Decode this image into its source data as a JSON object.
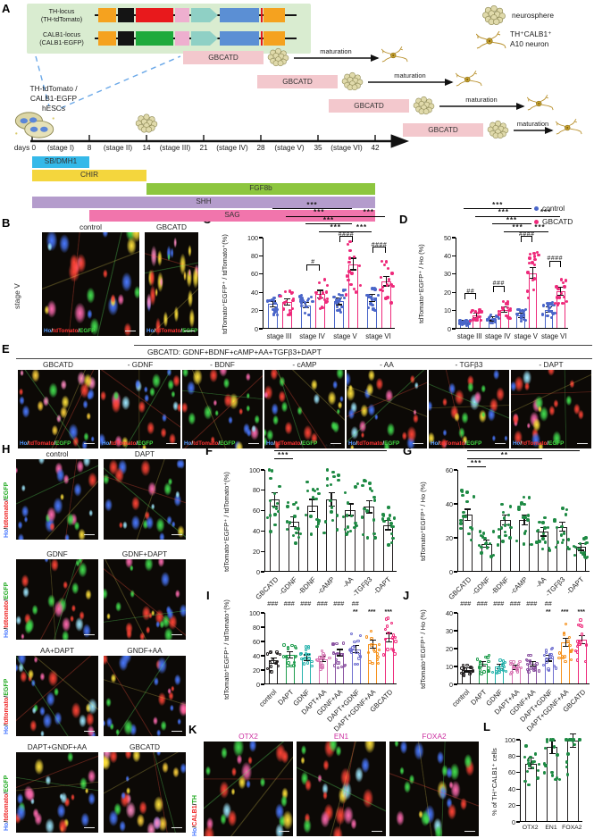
{
  "panel_labels": {
    "A": "A",
    "B": "B",
    "C": "C",
    "D": "D",
    "E": "E",
    "F": "F",
    "G": "G",
    "H": "H",
    "I": "I",
    "J": "J",
    "K": "K",
    "L": "L"
  },
  "colors": {
    "control": "#4a66c9",
    "gbcatd": "#ee2a7b",
    "green_dot": "#1e8a44",
    "k_title": "#cc2fa0",
    "ho_blue": "#5599ff",
    "tdtomato_red": "#ff3333",
    "egfp_green": "#44dd44"
  },
  "overlays": {
    "ho_td_egfp": [
      {
        "t": "Ho",
        "c": "#5599ff"
      },
      {
        "t": "/",
        "c": "#eeeeee"
      },
      {
        "t": "tdTomato",
        "c": "#ff3333"
      },
      {
        "t": "/",
        "c": "#eeeeee"
      },
      {
        "t": "EGFP",
        "c": "#44dd44"
      }
    ],
    "ho_tdtomato_egfp_side": [
      {
        "t": "Ho",
        "c": "#4d7bff"
      },
      {
        "t": "/",
        "c": "#222222"
      },
      {
        "t": "tdtomato",
        "c": "#ee2222"
      },
      {
        "t": "/",
        "c": "#222222"
      },
      {
        "t": "EGFP",
        "c": "#22aa22"
      }
    ],
    "ho_calb1_th_side": [
      {
        "t": "Ho",
        "c": "#4d7bff"
      },
      {
        "t": "/",
        "c": "#222222"
      },
      {
        "t": "CALB1",
        "c": "#ee2222"
      },
      {
        "t": "/",
        "c": "#222222"
      },
      {
        "t": "TH",
        "c": "#22aa22"
      }
    ]
  },
  "panelA": {
    "construct_rows": [
      {
        "name": "TH-locus",
        "name2": "(TH-tdTomato)",
        "boxes": [
          {
            "t": "Ex-",
            "c": "#f5a21f"
          },
          {
            "t": "2A",
            "c": "#141414"
          },
          {
            "t": "tdTomato",
            "c": "#e8191c"
          },
          {
            "t": "pA",
            "c": "#eeafcf"
          },
          {
            "t": "PGK",
            "c": "#8fd0c5",
            "arrow": true
          },
          {
            "t": "puromycin",
            "c": "#5b8fd4"
          },
          {
            "t": "on14",
            "c": "#f5a21f"
          }
        ]
      },
      {
        "name": "CALB1-locus",
        "name2": "(CALB1-EGFP)",
        "boxes": [
          {
            "t": "Ex-",
            "c": "#f5a21f"
          },
          {
            "t": "2A",
            "c": "#141414"
          },
          {
            "t": "EGFP",
            "c": "#1faa3c"
          },
          {
            "t": "pA",
            "c": "#eeafcf"
          },
          {
            "t": "PGK",
            "c": "#8fd0c5",
            "arrow": true
          },
          {
            "t": "neomycin",
            "c": "#5b8fd4"
          },
          {
            "t": "on11",
            "c": "#f5a21f"
          }
        ]
      }
    ],
    "legend": [
      {
        "icon": "neurosphere",
        "label1": "neurosphere",
        "label2": ""
      },
      {
        "icon": "neuron",
        "label1": "TH⁺CALB1⁺",
        "label2": "A10 neuron"
      }
    ],
    "hesc_lines": [
      "TH-tdTomato /",
      "CALB1-EGFP",
      "hESCs"
    ],
    "gbcatd_label": "GBCATD",
    "maturation_label": "maturation",
    "timeline": {
      "days_word": "days 0",
      "day_ticks": [
        "0",
        "8",
        "14",
        "21",
        "28",
        "35",
        "42"
      ],
      "stage_labels": [
        "(stage I)",
        "(stage II)",
        "(stage III)",
        "(stage IV)",
        "(stage V)",
        "(stage VI)"
      ],
      "factor_bars": [
        {
          "label": "SB/DMH1",
          "color": "#35b9e9",
          "from": 0,
          "to": 1
        },
        {
          "label": "CHIR",
          "color": "#f4d63d",
          "from": 0,
          "to": 2
        },
        {
          "label": "FGF8b",
          "color": "#8dc63f",
          "from": 2,
          "to": 6
        },
        {
          "label": "SHH",
          "color": "#b49ccc",
          "from": 0,
          "to": 6
        },
        {
          "label": "SAG",
          "color": "#f175ac",
          "from": 1,
          "to": 6
        }
      ]
    }
  },
  "panelB": {
    "row_label": "stage V",
    "image_titles": [
      "control",
      "GBCATD"
    ]
  },
  "panelD_legend": [
    {
      "label": "control",
      "color": "#4a66c9"
    },
    {
      "label": "GBCATD",
      "color": "#ee2a7b"
    }
  ],
  "panelE": {
    "header": "GBCATD: GDNF+BDNF+cAMP+AA+TGFβ3+DAPT",
    "image_titles": [
      "GBCATD",
      "- GDNF",
      "- BDNF",
      "- cAMP",
      "- AA",
      "- TGFβ3",
      "- DAPT"
    ]
  },
  "panelH": {
    "rows": [
      [
        "control",
        "DAPT"
      ],
      [
        "GDNF",
        "GDNF+DAPT"
      ],
      [
        "AA+DAPT",
        "GNDF+AA"
      ],
      [
        "DAPT+GNDF+AA",
        "GBCATD"
      ]
    ]
  },
  "panelK": {
    "image_titles": [
      "OTX2",
      "EN1",
      "FOXA2"
    ]
  },
  "chart_data": [
    {
      "panel": "C",
      "type": "bar",
      "subtype": "grouped",
      "categories": [
        "stage III",
        "stage IV",
        "stage V",
        "stage VI"
      ],
      "series": [
        {
          "name": "control",
          "color": "#4a66c9",
          "values": [
            26,
            25,
            29,
            33
          ]
        },
        {
          "name": "GBCATD",
          "color": "#ee2a7b",
          "values": [
            28,
            37,
            70,
            51
          ]
        }
      ],
      "ylabel": "tdTomato⁺EGFP⁺ / tdTomato⁺(%)",
      "ylim": [
        0,
        100
      ],
      "yticks": [
        0,
        20,
        40,
        60,
        80,
        100
      ],
      "group_sig": [
        "",
        "#",
        "####",
        "####"
      ],
      "sig_lines": [
        {
          "from": 0,
          "to": 5,
          "row": 0,
          "label": "***"
        },
        {
          "from": 1,
          "to": 5,
          "row": 1,
          "label": "***"
        },
        {
          "from": 2,
          "to": 5,
          "row": 2,
          "label": "***"
        },
        {
          "from": 3,
          "to": 5,
          "row": 3,
          "label": "***"
        },
        {
          "from": 5,
          "to": 7,
          "row": 1,
          "label": "***"
        },
        {
          "from": 5,
          "to": 6,
          "row": 3,
          "label": "***"
        }
      ]
    },
    {
      "panel": "D",
      "type": "bar",
      "subtype": "grouped",
      "categories": [
        "stage III",
        "stage IV",
        "stage V",
        "stage VI"
      ],
      "series": [
        {
          "name": "control",
          "color": "#4a66c9",
          "values": [
            3,
            5,
            7,
            10
          ]
        },
        {
          "name": "GBCATD",
          "color": "#ee2a7b",
          "values": [
            7,
            10,
            30,
            20
          ]
        }
      ],
      "ylabel": "tdTomato⁺EGFP⁺ / Ho (%)",
      "ylim": [
        0,
        50
      ],
      "yticks": [
        0,
        10,
        20,
        30,
        40,
        50
      ],
      "group_sig": [
        "##",
        "###",
        "####",
        "####"
      ],
      "sig_lines": [
        {
          "from": 0,
          "to": 5,
          "row": 0,
          "label": "***"
        },
        {
          "from": 1,
          "to": 5,
          "row": 1,
          "label": "***"
        },
        {
          "from": 2,
          "to": 5,
          "row": 2,
          "label": "***"
        },
        {
          "from": 3,
          "to": 5,
          "row": 3,
          "label": "***"
        },
        {
          "from": 5,
          "to": 7,
          "row": 1,
          "label": "***"
        },
        {
          "from": 5,
          "to": 6,
          "row": 3,
          "label": "***"
        }
      ]
    },
    {
      "panel": "F",
      "type": "bar",
      "categories": [
        "GBCATD",
        "-GDNF",
        "-BDNF",
        "-cAMP",
        "-AA",
        "-TGFβ3",
        "-DAPT"
      ],
      "values": [
        70,
        48,
        64,
        70,
        60,
        63,
        45
      ],
      "dot_color": "#1e8a44",
      "ylabel": "tdTomato⁺EGFP⁺ / tdTomato⁺(%)",
      "ylim": [
        0,
        100
      ],
      "yticks": [
        0,
        20,
        40,
        60,
        80,
        100
      ],
      "sig_lines": [
        {
          "from": 0,
          "to": 6,
          "row": 0,
          "label": "***"
        },
        {
          "from": 0,
          "to": 1,
          "row": 1,
          "label": "***"
        }
      ]
    },
    {
      "panel": "G",
      "type": "bar",
      "categories": [
        "GBCATD",
        "-GDNF",
        "-BDNF",
        "-cAMP",
        "-AA",
        "-TGFβ3",
        "-DAPT"
      ],
      "values": [
        33,
        16,
        30,
        30,
        23,
        26,
        14
      ],
      "dot_color": "#1e8a44",
      "ylabel": "tdTomato⁺EGFP⁺ / Ho (%)",
      "ylim": [
        0,
        60
      ],
      "yticks": [
        0,
        20,
        40,
        60
      ],
      "sig_lines": [
        {
          "from": 0,
          "to": 6,
          "row": 0,
          "label": "***"
        },
        {
          "from": 0,
          "to": 4,
          "row": 1,
          "label": "**"
        },
        {
          "from": 0,
          "to": 1,
          "row": 2,
          "label": "***"
        }
      ]
    },
    {
      "panel": "I",
      "type": "bar",
      "open_dots": true,
      "categories": [
        "control",
        "DAPT",
        "GDNF",
        "DAPT+AA",
        "GDNF+AA",
        "DAPT+GDNF",
        "DAPT+GDNF+AA",
        "GBCATD"
      ],
      "values": [
        32,
        40,
        36,
        34,
        43,
        48,
        55,
        64
      ],
      "bar_colors": [
        "#231f20",
        "#1f9d4d",
        "#27b3ad",
        "#d877b4",
        "#8a52a0",
        "#6f6fd0",
        "#f6921e",
        "#ee2a7b"
      ],
      "ylabel": "tdTomato⁺EGFP⁺ / tdTomato⁺(%)",
      "ylim": [
        0,
        100
      ],
      "yticks": [
        0,
        20,
        40,
        60,
        80,
        100
      ],
      "hash_marks": [
        "###",
        "###",
        "###",
        "###",
        "###",
        "##",
        "",
        ""
      ],
      "star_marks": [
        "",
        "",
        "",
        "",
        "",
        "**",
        "***",
        "***"
      ]
    },
    {
      "panel": "J",
      "type": "bar",
      "open_dots": true,
      "categories": [
        "control",
        "DAPT",
        "GDNF",
        "DAPT+AA",
        "GDNF+AA",
        "DAPT+GDNF",
        "DAPT+GDNF+AA",
        "GBCATD"
      ],
      "values": [
        7.5,
        11,
        9.5,
        9,
        11,
        14,
        23,
        24.5
      ],
      "bar_colors": [
        "#231f20",
        "#1f9d4d",
        "#27b3ad",
        "#d877b4",
        "#8a52a0",
        "#6f6fd0",
        "#f6921e",
        "#ee2a7b"
      ],
      "ylabel": "tdTomato⁺EGFP⁺ / Ho (%)",
      "ylim": [
        0,
        40
      ],
      "yticks": [
        0,
        10,
        20,
        30,
        40
      ],
      "hash_marks": [
        "###",
        "###",
        "###",
        "###",
        "###",
        "##",
        "",
        ""
      ],
      "star_marks": [
        "",
        "",
        "",
        "",
        "",
        "**",
        "***",
        "***"
      ]
    },
    {
      "panel": "L",
      "type": "bar",
      "categories": [
        "OTX2",
        "EN1",
        "FOXA2"
      ],
      "values": [
        70,
        90,
        98
      ],
      "dot_color": "#1e8a44",
      "ylabel": "% of TH⁺CALB1⁺ cells",
      "ylim": [
        0,
        100
      ],
      "yticks": [
        0,
        20,
        40,
        60,
        80,
        100
      ]
    }
  ]
}
